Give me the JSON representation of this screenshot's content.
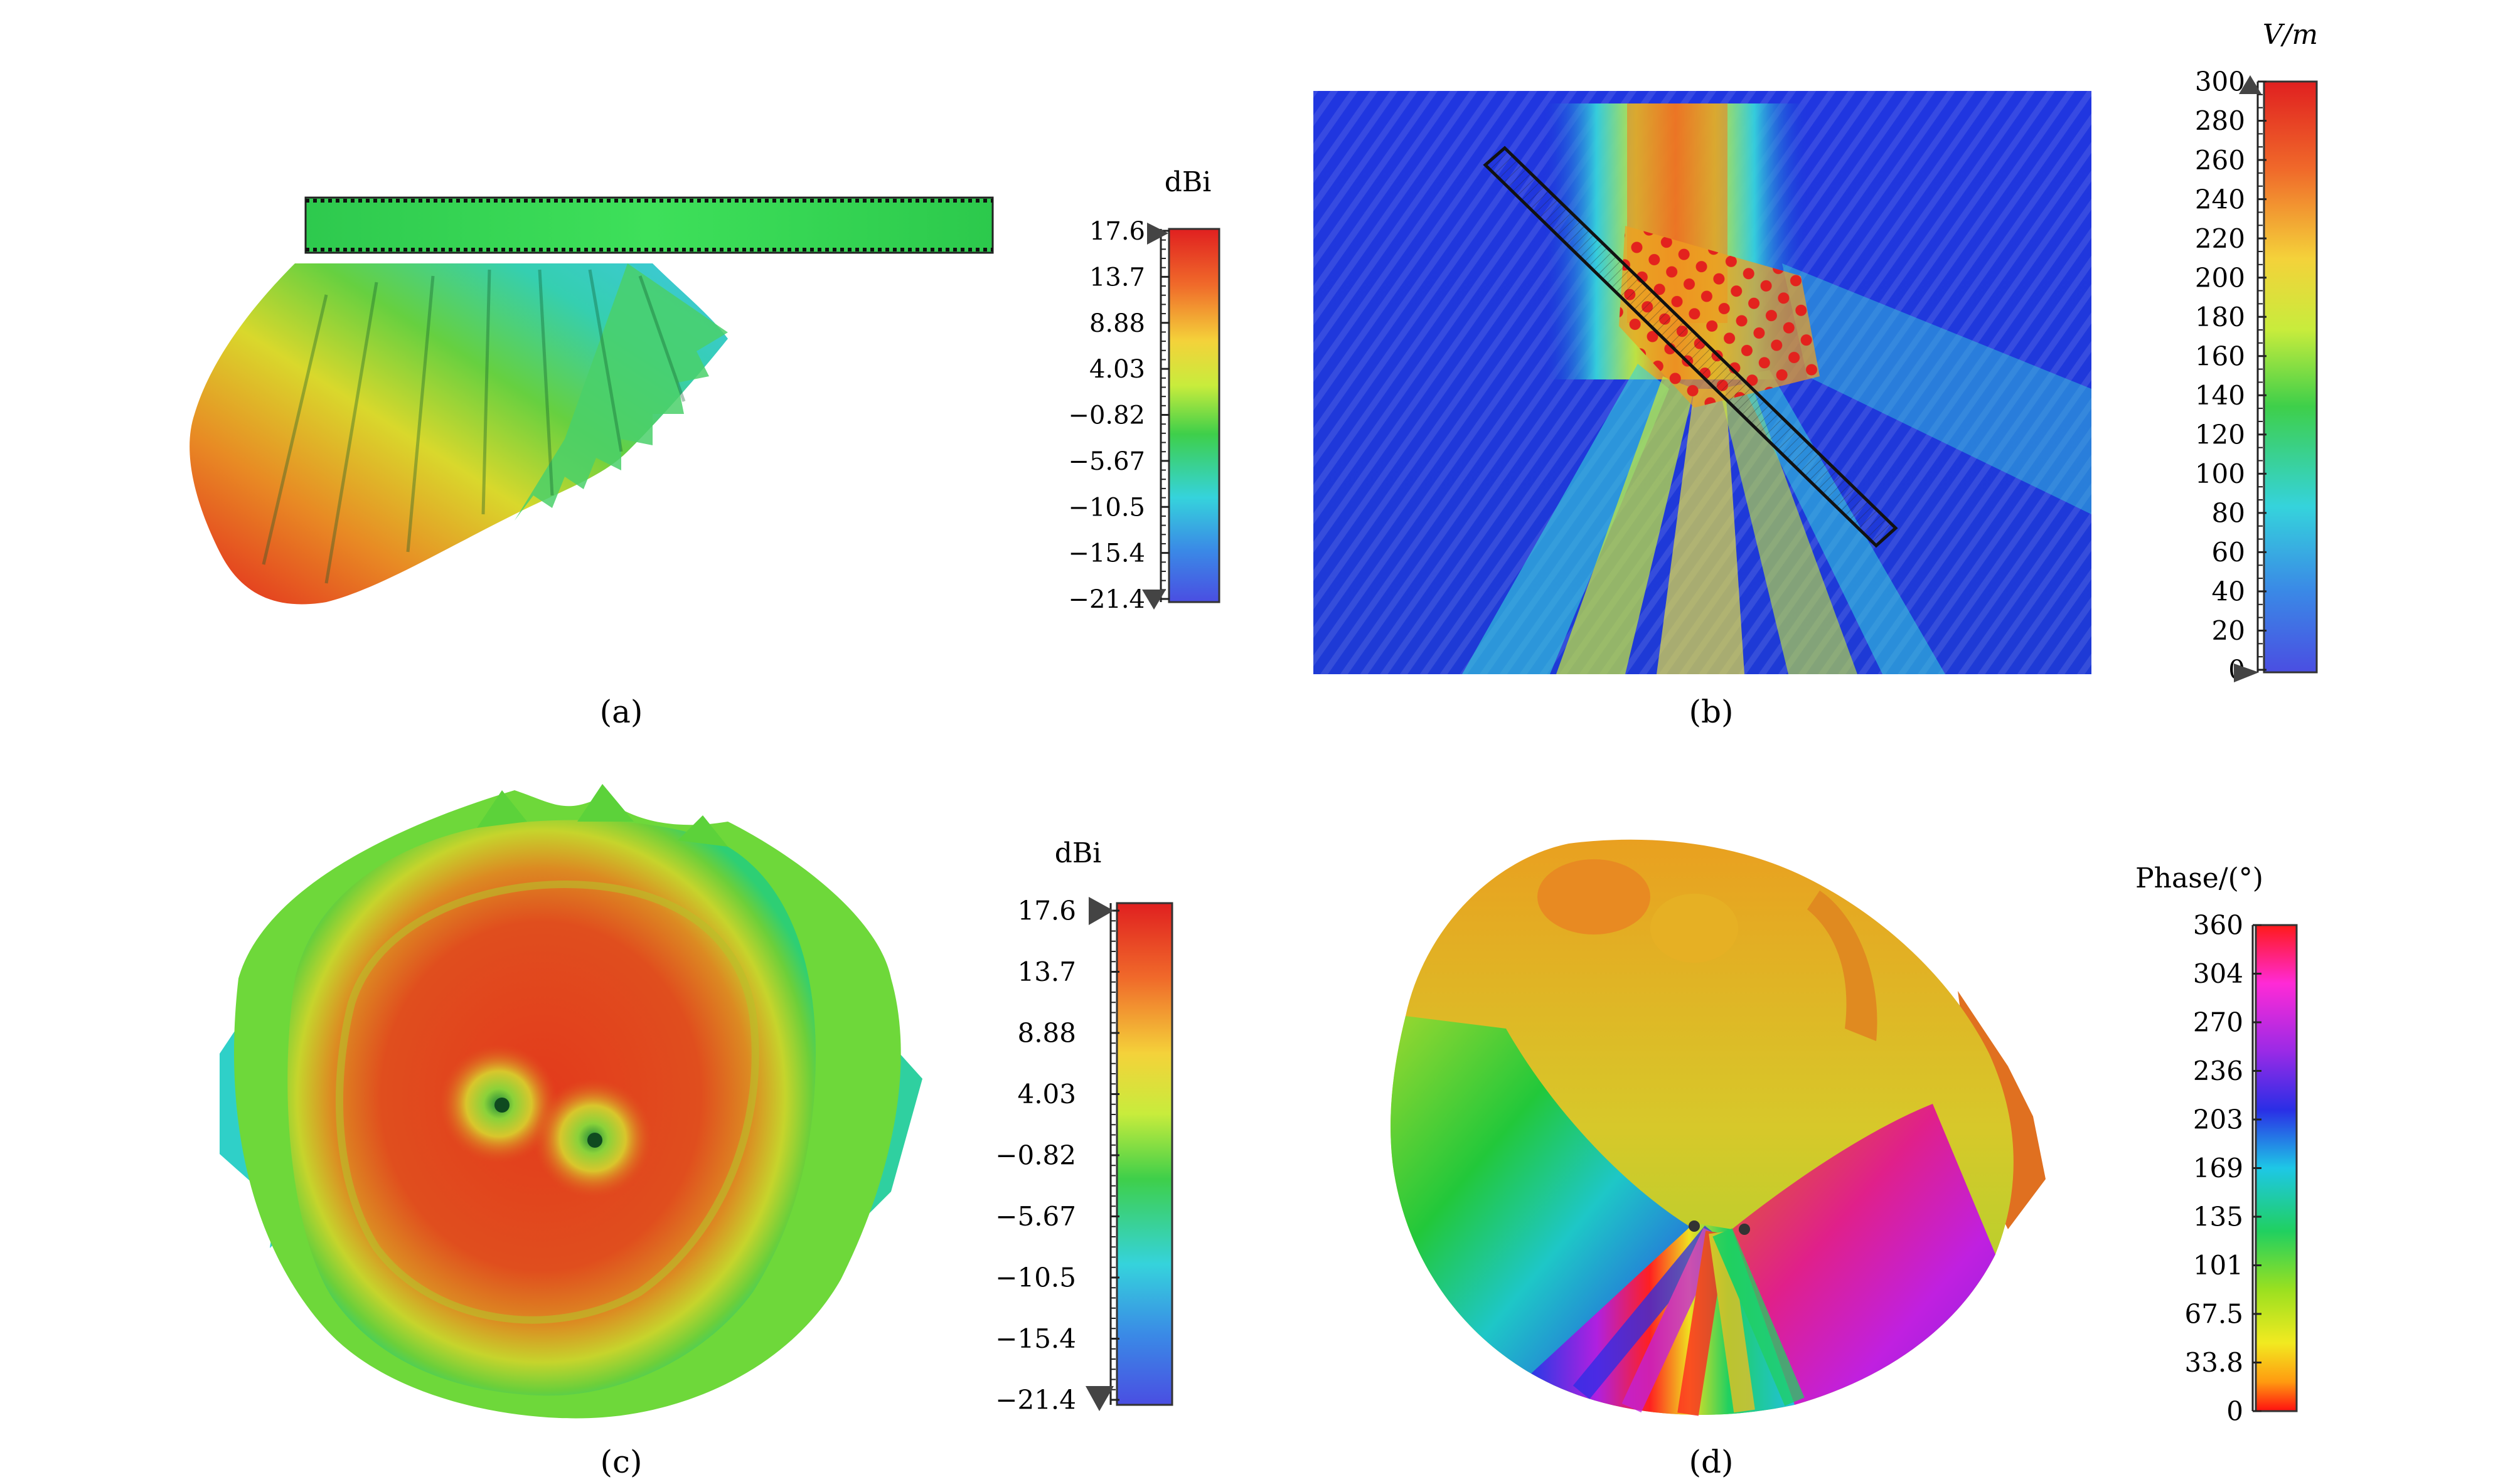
{
  "figure": {
    "panels": [
      {
        "label": "(a)",
        "colorbar": {
          "unit": "dBi",
          "ticks": [
            "17.6",
            "13.7",
            "8.88",
            "4.03",
            "−0.82",
            "−5.67",
            "−10.5",
            "−15.4",
            "−21.4"
          ],
          "min": -21.4,
          "max": 17.6
        }
      },
      {
        "label": "(b)",
        "colorbar": {
          "unit": "V/m",
          "ticks": [
            "300",
            "280",
            "260",
            "240",
            "220",
            "200",
            "180",
            "160",
            "140",
            "120",
            "100",
            "80",
            "60",
            "40",
            "20",
            "0"
          ],
          "min": 0,
          "max": 300
        }
      },
      {
        "label": "(c)",
        "colorbar": {
          "unit": "dBi",
          "ticks": [
            "17.6",
            "13.7",
            "8.88",
            "4.03",
            "−0.82",
            "−5.67",
            "−10.5",
            "−15.4",
            "−21.4"
          ],
          "min": -21.4,
          "max": 17.6
        }
      },
      {
        "label": "(d)",
        "colorbar": {
          "unit": "Phase/(°)",
          "ticks": [
            "360",
            "304",
            "270",
            "236",
            "203",
            "169",
            "135",
            "101",
            "67.5",
            "33.8",
            "0"
          ],
          "min": 0,
          "max": 360
        }
      }
    ],
    "colors": {
      "jet_red": "#e8242a",
      "jet_yellow": "#f2ea3a",
      "jet_green": "#3ccf4c",
      "jet_cyan": "#35d7e0",
      "jet_blue": "#3b55e6",
      "field_background": "#1a3fd8"
    }
  }
}
